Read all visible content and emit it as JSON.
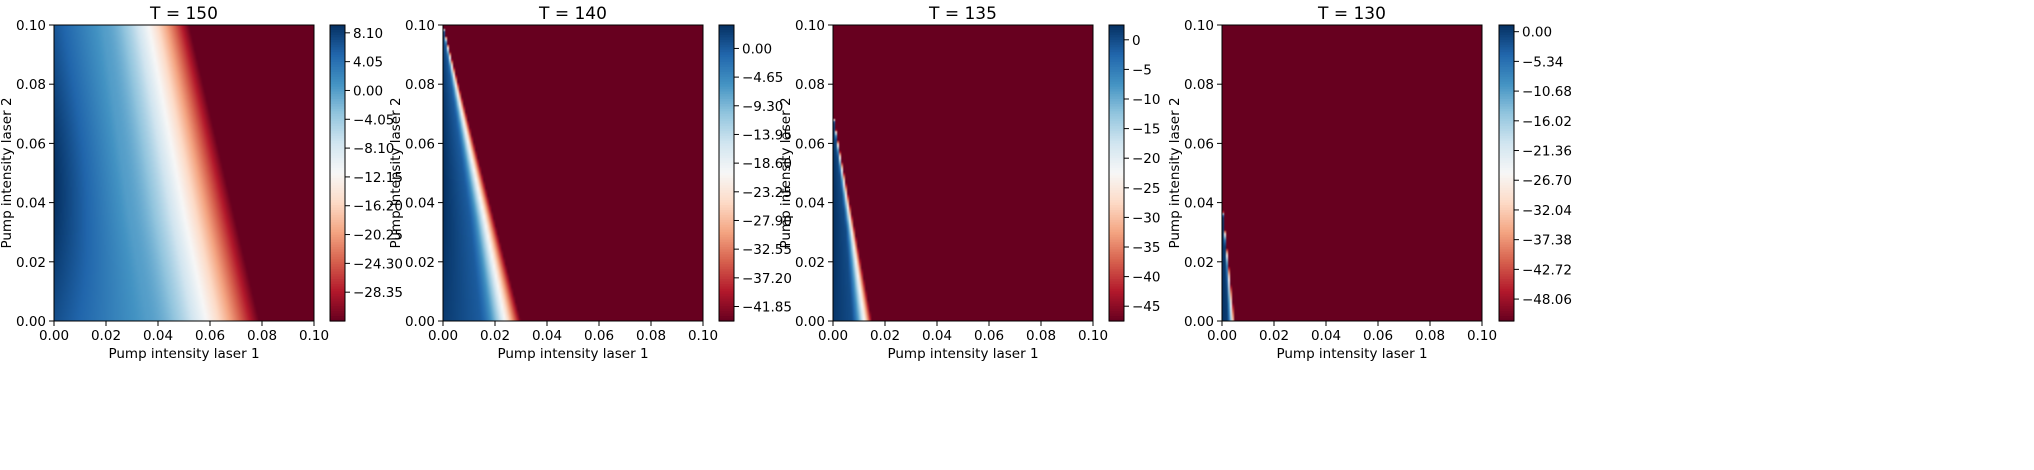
{
  "chart_data": [
    {
      "type": "heatmap",
      "title": "T = 150",
      "xlabel": "Pump intensity laser 1",
      "ylabel": "Pump intensity laser 2",
      "xlim": [
        0.0,
        0.1
      ],
      "ylim": [
        0.0,
        0.1
      ],
      "xticks": [
        "0.00",
        "0.02",
        "0.04",
        "0.06",
        "0.08",
        "0.10"
      ],
      "yticks": [
        "0.00",
        "0.02",
        "0.04",
        "0.06",
        "0.08",
        "0.10"
      ],
      "colormap": "RdBu",
      "colorbar": {
        "min": -32.4,
        "max": 9.2,
        "ticks": [
          8.1,
          4.05,
          0.0,
          -4.05,
          -8.1,
          -12.15,
          -16.2,
          -20.25,
          -24.3,
          -28.35
        ],
        "tick_labels": [
          "8.10",
          "4.05",
          "0.00",
          "−4.05",
          "−8.10",
          "−12.15",
          "−16.20",
          "−20.25",
          "−24.30",
          "−28.35"
        ]
      },
      "field": {
        "value_at_origin_peak": 9.2,
        "zero_contour_x": [
          [
            0.0,
            0.036
          ],
          [
            0.035,
            0.029
          ],
          [
            0.1,
            0.019
          ]
        ],
        "saturated_value": -32.4,
        "saturation_x": [
          [
            0.0,
            0.079
          ],
          [
            0.1,
            0.052
          ]
        ]
      }
    },
    {
      "type": "heatmap",
      "title": "T = 140",
      "xlabel": "Pump intensity laser 1",
      "ylabel": "Pump intensity laser 2",
      "xlim": [
        0.0,
        0.1
      ],
      "ylim": [
        0.0,
        0.1
      ],
      "xticks": [
        "0.00",
        "0.02",
        "0.04",
        "0.06",
        "0.08",
        "0.10"
      ],
      "yticks": [
        "0.00",
        "0.02",
        "0.04",
        "0.06",
        "0.08",
        "0.10"
      ],
      "colormap": "RdBu",
      "colorbar": {
        "min": -44.2,
        "max": 3.8,
        "ticks": [
          0.0,
          -4.65,
          -9.3,
          -13.95,
          -18.6,
          -23.25,
          -27.9,
          -32.55,
          -37.2,
          -41.85
        ],
        "tick_labels": [
          "0.00",
          "−4.65",
          "−9.30",
          "−13.95",
          "−18.60",
          "−23.25",
          "−27.90",
          "−32.55",
          "−37.20",
          "−41.85"
        ]
      },
      "field": {
        "value_at_origin_peak": 3.8,
        "zero_contour_x": [
          [
            0.0,
            0.014
          ],
          [
            0.035,
            0.01
          ],
          [
            0.1,
            0.0
          ]
        ],
        "saturated_value": -44.2,
        "saturation_x": [
          [
            0.0,
            0.03
          ],
          [
            0.1,
            0.0
          ]
        ]
      }
    },
    {
      "type": "heatmap",
      "title": "T = 135",
      "xlabel": "Pump intensity laser 1",
      "ylabel": "Pump intensity laser 2",
      "xlim": [
        0.0,
        0.1
      ],
      "ylim": [
        0.0,
        0.1
      ],
      "xticks": [
        "0.00",
        "0.02",
        "0.04",
        "0.06",
        "0.08",
        "0.10"
      ],
      "yticks": [
        "0.00",
        "0.02",
        "0.04",
        "0.06",
        "0.08",
        "0.10"
      ],
      "colormap": "RdBu",
      "colorbar": {
        "min": -47.5,
        "max": 2.5,
        "ticks": [
          0,
          -5,
          -10,
          -15,
          -20,
          -25,
          -30,
          -35,
          -40,
          -45
        ],
        "tick_labels": [
          "0",
          "−5",
          "−10",
          "−15",
          "−20",
          "−25",
          "−30",
          "−35",
          "−40",
          "−45"
        ]
      },
      "field": {
        "value_at_origin_peak": 2.5,
        "zero_contour_x": [
          [
            0.0,
            0.007
          ],
          [
            0.03,
            0.005
          ],
          [
            0.07,
            0.0
          ]
        ],
        "saturated_value": -47.5,
        "saturation_x": [
          [
            0.0,
            0.015
          ],
          [
            0.07,
            0.0
          ]
        ]
      }
    },
    {
      "type": "heatmap",
      "title": "T = 130",
      "xlabel": "Pump intensity laser 1",
      "ylabel": "Pump intensity laser 2",
      "xlim": [
        0.0,
        0.1
      ],
      "ylim": [
        0.0,
        0.1
      ],
      "xticks": [
        "0.00",
        "0.02",
        "0.04",
        "0.06",
        "0.08",
        "0.10"
      ],
      "yticks": [
        "0.00",
        "0.02",
        "0.04",
        "0.06",
        "0.08",
        "0.10"
      ],
      "colormap": "RdBu",
      "colorbar": {
        "min": -52.0,
        "max": 1.2,
        "ticks": [
          0.0,
          -5.34,
          -10.68,
          -16.02,
          -21.36,
          -26.7,
          -32.04,
          -37.38,
          -42.72,
          -48.06
        ],
        "tick_labels": [
          "0.00",
          "−5.34",
          "−10.68",
          "−16.02",
          "−21.36",
          "−26.70",
          "−32.04",
          "−37.38",
          "−42.72",
          "−48.06"
        ]
      },
      "field": {
        "value_at_origin_peak": 1.2,
        "zero_contour_x": [
          [
            0.0,
            0.002
          ],
          [
            0.02,
            0.0015
          ],
          [
            0.04,
            0.0
          ]
        ],
        "saturated_value": -52.0,
        "saturation_x": [
          [
            0.0,
            0.005
          ],
          [
            0.04,
            0.0
          ]
        ]
      }
    }
  ]
}
